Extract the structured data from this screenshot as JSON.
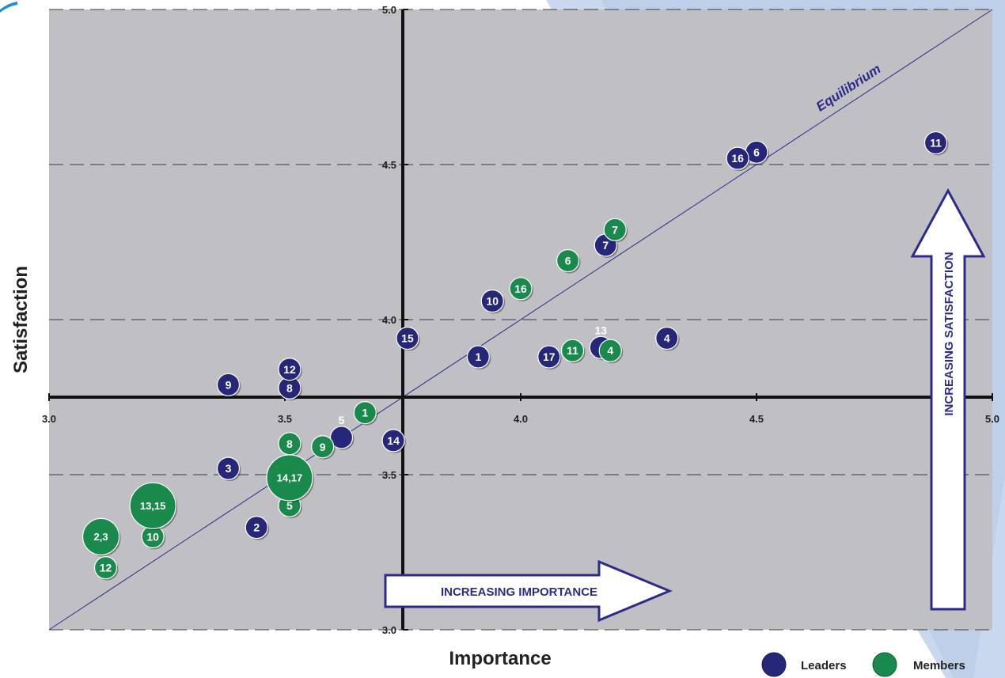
{
  "chart_data": {
    "type": "scatter",
    "xlabel": "Importance",
    "ylabel": "Satisfaction",
    "xlim": [
      3.0,
      5.0
    ],
    "ylim": [
      3.0,
      5.0
    ],
    "x_ticks": [
      "3.0",
      "3.5",
      "4.0",
      "4.5",
      "5.0"
    ],
    "y_ticks": [
      "3.0",
      "3.5",
      "4.0",
      "4.5",
      "5.0"
    ],
    "crosshair": {
      "x": 3.75,
      "y": 3.75
    },
    "grid": "horizontal dashed",
    "equilibrium_label": "Equilibrium",
    "arrow_x_label": "INCREASING IMPORTANCE",
    "arrow_y_label": "INCREASING SATISFACTION",
    "legend_position": "bottom-right",
    "series": [
      {
        "name": "Leaders",
        "color": "#27277a",
        "points": [
          {
            "label": "1",
            "x": 3.91,
            "y": 3.88
          },
          {
            "label": "2",
            "x": 3.44,
            "y": 3.33
          },
          {
            "label": "3",
            "x": 3.38,
            "y": 3.52
          },
          {
            "label": "4",
            "x": 4.31,
            "y": 3.94
          },
          {
            "label": "5",
            "x": 3.62,
            "y": 3.62
          },
          {
            "label": "6",
            "x": 4.5,
            "y": 4.54
          },
          {
            "label": "7",
            "x": 4.18,
            "y": 4.24
          },
          {
            "label": "8",
            "x": 3.51,
            "y": 3.78
          },
          {
            "label": "9",
            "x": 3.38,
            "y": 3.79
          },
          {
            "label": "10",
            "x": 3.94,
            "y": 4.06
          },
          {
            "label": "11",
            "x": 4.88,
            "y": 4.57
          },
          {
            "label": "12",
            "x": 3.51,
            "y": 3.84
          },
          {
            "label": "13",
            "x": 4.17,
            "y": 3.91
          },
          {
            "label": "14",
            "x": 3.73,
            "y": 3.61
          },
          {
            "label": "15",
            "x": 3.76,
            "y": 3.94
          },
          {
            "label": "16",
            "x": 4.46,
            "y": 4.52
          },
          {
            "label": "17",
            "x": 4.06,
            "y": 3.88
          }
        ]
      },
      {
        "name": "Members",
        "color": "#1a8a4c",
        "points": [
          {
            "label": "1",
            "x": 3.67,
            "y": 3.7
          },
          {
            "label": "2,3",
            "x": 3.11,
            "y": 3.3
          },
          {
            "label": "4",
            "x": 4.19,
            "y": 3.9
          },
          {
            "label": "5",
            "x": 3.51,
            "y": 3.4
          },
          {
            "label": "6",
            "x": 4.1,
            "y": 4.19
          },
          {
            "label": "7",
            "x": 4.2,
            "y": 4.29
          },
          {
            "label": "8",
            "x": 3.51,
            "y": 3.6
          },
          {
            "label": "9",
            "x": 3.58,
            "y": 3.59
          },
          {
            "label": "10",
            "x": 3.22,
            "y": 3.3
          },
          {
            "label": "11",
            "x": 4.11,
            "y": 3.9
          },
          {
            "label": "12",
            "x": 3.12,
            "y": 3.2
          },
          {
            "label": "13,15",
            "x": 3.22,
            "y": 3.4
          },
          {
            "label": "14,17",
            "x": 3.51,
            "y": 3.49
          },
          {
            "label": "16",
            "x": 4.0,
            "y": 4.1
          }
        ]
      }
    ]
  }
}
